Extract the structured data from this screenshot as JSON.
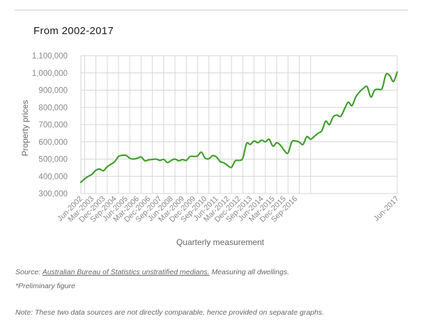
{
  "heading": "From 2002-2017",
  "footer": {
    "source_prefix": "Source: ",
    "source_link": "Australian Bureau of Statistics unstratified medians.",
    "source_suffix": " Measuring all dwellings.",
    "preliminary": "*Preliminary figure",
    "note": "Note: These two data sources are not directly comparable, hence provided on separate graphs."
  },
  "colors": {
    "line": "#3f9e2a",
    "grid": "#d6d6d6",
    "axis_text": "#888888"
  },
  "chart_data": {
    "type": "line",
    "title": "",
    "xlabel": "Quarterly measurement",
    "ylabel": "Property prices",
    "ylim": [
      300000,
      1100000
    ],
    "yticks": [
      300000,
      400000,
      500000,
      600000,
      700000,
      800000,
      900000,
      1000000,
      1100000
    ],
    "ytick_labels": [
      "300,000",
      "400,000",
      "500,000",
      "600,000",
      "700,000",
      "800,000",
      "900,000",
      "1,000,000",
      "1,100,000"
    ],
    "x_labels": [
      "Jun-2002",
      "Mar-2003",
      "Dec-2003",
      "Sep-2004",
      "Jun-2005",
      "Mar-2006",
      "Dec-2006",
      "Sep-2007",
      "Jun-2008",
      "Mar-2009",
      "Dec-2009",
      "Sep-2010",
      "Jun-2011",
      "Mar-2012",
      "Dec-2012",
      "Sep-2013",
      "Jun-2014",
      "Mar-2015",
      "Dec-2015",
      "Sep-2016",
      "Jun-2017"
    ],
    "grid": true,
    "series": [
      {
        "values": [
          365000,
          385000,
          400000,
          412000,
          435000,
          442000,
          432000,
          455000,
          470000,
          485000,
          515000,
          522000,
          522000,
          505000,
          500000,
          505000,
          512000,
          490000,
          495000,
          498000,
          500000,
          492000,
          498000,
          480000,
          492000,
          500000,
          490000,
          497000,
          492000,
          515000,
          515000,
          518000,
          540000,
          505000,
          502000,
          520000,
          512000,
          485000,
          478000,
          462000,
          452000,
          490000,
          492000,
          505000,
          590000,
          585000,
          605000,
          595000,
          610000,
          600000,
          615000,
          575000,
          595000,
          580000,
          550000,
          535000,
          600000,
          605000,
          598000,
          585000,
          630000,
          615000,
          632000,
          650000,
          665000,
          720000,
          700000,
          745000,
          755000,
          748000,
          790000,
          830000,
          810000,
          860000,
          890000,
          910000,
          920000,
          860000,
          900000,
          905000,
          910000,
          990000,
          985000,
          950000,
          1005000
        ]
      }
    ]
  }
}
